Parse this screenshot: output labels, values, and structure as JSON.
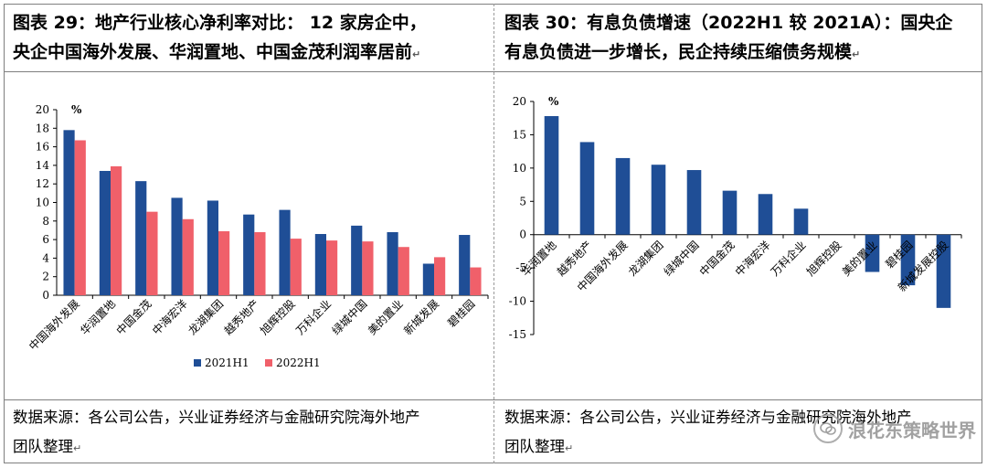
{
  "left": {
    "title_line1": "图表 29：地产行业核心净利率对比：  12 家房企中，",
    "title_line2": "央企中国海外发展、华润置地、中国金茂利润率居前",
    "source_line1": "数据来源：各公司公告，兴业证券经济与金融研究院海外地产",
    "source_line2": "团队整理"
  },
  "right": {
    "title_line1": "图表 30：有息负债增速（2022H1 较 2021A）：国央企",
    "title_line2": "有息负债进一步增长，民企持续压缩债务规模",
    "source_line1": "数据来源：各公司公告，兴业证券经济与金融研究院海外地产",
    "source_line2": "团队整理"
  },
  "return_mark": "↵",
  "watermark": "浪花东策略世界",
  "colors": {
    "blue": "#1f4e96",
    "red": "#f0606a"
  },
  "chart_data": [
    {
      "type": "bar",
      "title": "",
      "unit_label": "%",
      "categories": [
        "中国海外发展",
        "华润置地",
        "中国金茂",
        "中海宏洋",
        "龙湖集团",
        "越秀地产",
        "旭辉控股",
        "万科企业",
        "绿城中国",
        "美的置业",
        "新城发展",
        "碧桂园"
      ],
      "series": [
        {
          "name": "2021H1",
          "color": "#1f4e96",
          "values": [
            17.8,
            13.4,
            12.3,
            10.5,
            10.2,
            8.7,
            9.2,
            6.6,
            7.5,
            6.8,
            3.4,
            6.5
          ]
        },
        {
          "name": "2022H1",
          "color": "#f0606a",
          "values": [
            16.7,
            13.9,
            9.0,
            8.2,
            6.9,
            6.8,
            6.1,
            5.9,
            5.8,
            5.2,
            4.1,
            3.0
          ]
        }
      ],
      "ylim": [
        0,
        20
      ],
      "yticks": [
        0,
        2,
        4,
        6,
        8,
        10,
        12,
        14,
        16,
        18,
        20
      ],
      "legend": "bottom"
    },
    {
      "type": "bar",
      "title": "",
      "unit_label": "%",
      "categories": [
        "华润置地",
        "越秀地产",
        "中国海外发展",
        "龙湖集团",
        "绿城中国",
        "中国金茂",
        "中海宏洋",
        "万科企业",
        "旭辉控股",
        "美的置业",
        "碧桂园",
        "新城发展控股"
      ],
      "series": [
        {
          "name": "有息负债增速",
          "color": "#1f4e96",
          "values": [
            17.8,
            13.9,
            11.5,
            10.5,
            9.7,
            6.6,
            6.1,
            3.9,
            0,
            -5.6,
            -7.6,
            -11.0
          ]
        }
      ],
      "ylim": [
        -15,
        20
      ],
      "yticks": [
        -15,
        -10,
        -5,
        0,
        5,
        10,
        15,
        20
      ],
      "legend": "none"
    }
  ]
}
